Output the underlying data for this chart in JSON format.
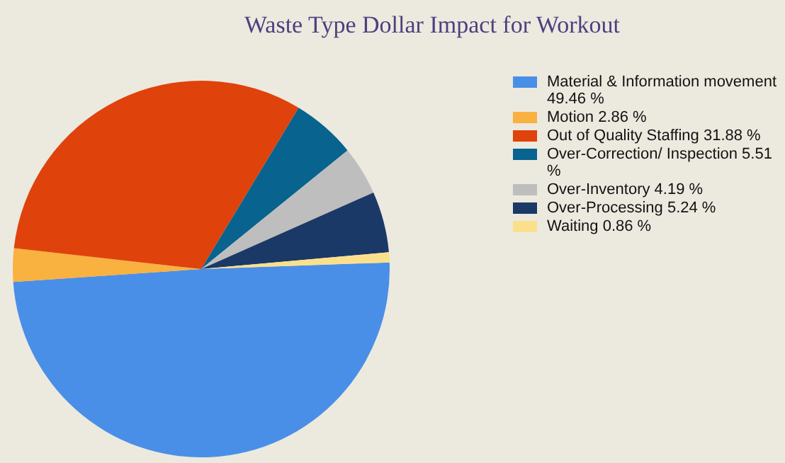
{
  "chart_data": {
    "type": "pie",
    "title": "Waste Type Dollar Impact for Workout",
    "categories": [
      "Material & Information movement",
      "Motion",
      "Out of Quality Staffing",
      "Over-Correction/ Inspection",
      "Over-Inventory",
      "Over-Processing",
      "Waiting"
    ],
    "values": [
      49.46,
      2.86,
      31.88,
      5.51,
      4.19,
      5.24,
      0.86
    ],
    "value_labels": [
      "49.46 %",
      "2.86 %",
      "31.88 %",
      "5.51 %",
      "4.19 %",
      "5.24 %",
      "0.86 %"
    ],
    "colors": [
      "#4a8fe7",
      "#f9b13f",
      "#e0420c",
      "#08638f",
      "#bebebe",
      "#1b3966",
      "#fbe08c"
    ],
    "legend": "right"
  }
}
